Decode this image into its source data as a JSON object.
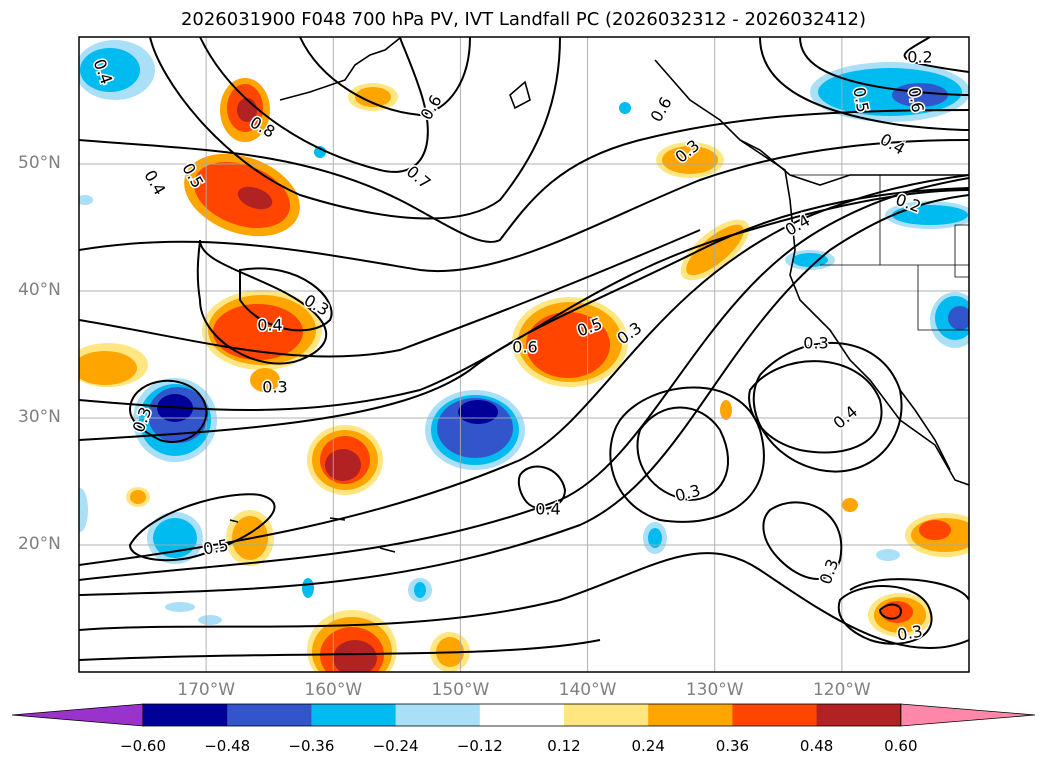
{
  "title": "2026031900 F048 700 hPa PV, IVT Landfall PC (2026032312 - 2026032412)",
  "map": {
    "lat_ticks": [
      {
        "text": "50°N",
        "lat": 50
      },
      {
        "text": "40°N",
        "lat": 40
      },
      {
        "text": "30°N",
        "lat": 30
      },
      {
        "text": "20°N",
        "lat": 20
      }
    ],
    "lon_ticks": [
      {
        "text": "170°W",
        "lon": -170
      },
      {
        "text": "160°W",
        "lon": -160
      },
      {
        "text": "150°W",
        "lon": -150
      },
      {
        "text": "140°W",
        "lon": -140
      },
      {
        "text": "130°W",
        "lon": -130
      },
      {
        "text": "120°W",
        "lon": -120
      }
    ],
    "extent": {
      "lon_min": -180,
      "lon_max": -110,
      "lat_min": 10,
      "lat_max": 60
    },
    "contour_labels": [
      "0.2",
      "0.5",
      "0.6",
      "0.4",
      "0.4",
      "0.2",
      "0.6",
      "0.6",
      "0.7",
      "0.3",
      "0.4",
      "0.8",
      "0.5",
      "0.4",
      "0.3",
      "0.4",
      "0.3",
      "0.3",
      "0.6",
      "0.5",
      "0.3",
      "0.3",
      "0.4",
      "0.3",
      "0.4",
      "0.5",
      "0.3",
      "0.3"
    ]
  },
  "colorbar": {
    "labels": [
      "−0.60",
      "−0.48",
      "−0.36",
      "−0.24",
      "−0.12",
      "0.12",
      "0.24",
      "0.36",
      "0.48",
      "0.60"
    ],
    "colors": [
      "#9933cc",
      "#000099",
      "#3355cc",
      "#00bbf0",
      "#aadff8",
      "#ffffff",
      "#ffe680",
      "#ffa500",
      "#ff4500",
      "#b22222",
      "#ff88aa"
    ]
  }
}
